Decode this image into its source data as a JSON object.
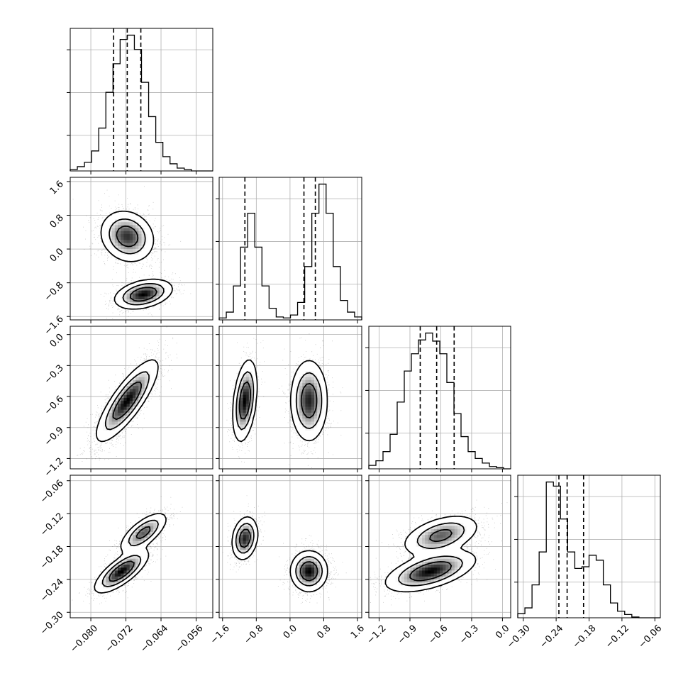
{
  "chart_data": {
    "type": "corner",
    "title": "",
    "params": [
      {
        "xticks": [
          "−0.080",
          "−0.072",
          "−0.064",
          "−0.056"
        ],
        "xtick_values": [
          -0.08,
          -0.072,
          -0.064,
          -0.056
        ],
        "xlim": [
          -0.0847,
          -0.0522
        ],
        "quantiles": [
          -0.0748,
          -0.0717,
          -0.0686
        ]
      },
      {
        "xticks": [
          "−1.6",
          "−0.8",
          "0.0",
          "0.8",
          "1.6"
        ],
        "xtick_values": [
          -1.6,
          -0.8,
          0.0,
          0.8,
          1.6
        ],
        "yticks": [
          "1.6",
          "0.8",
          "0.0",
          "−0.8",
          "−1.6"
        ],
        "ytick_values": [
          1.6,
          0.8,
          0.0,
          -0.8,
          -1.6
        ],
        "xlim": [
          -1.68,
          1.7
        ],
        "quantiles": [
          -1.07,
          0.33,
          0.6
        ]
      },
      {
        "xticks": [
          "−1.2",
          "−0.9",
          "−0.6",
          "−0.3",
          "0.0"
        ],
        "xtick_values": [
          -1.2,
          -0.9,
          -0.6,
          -0.3,
          0.0
        ],
        "yticks": [
          "0.0",
          "−0.3",
          "−0.6",
          "−0.9",
          "−1.2"
        ],
        "ytick_values": [
          0.0,
          -0.3,
          -0.6,
          -0.9,
          -1.2
        ],
        "xlim": [
          -1.3,
          0.08
        ],
        "quantiles": [
          -0.8,
          -0.64,
          -0.47
        ]
      },
      {
        "xticks": [
          "−0.30",
          "−0.24",
          "−0.18",
          "−0.12",
          "−0.06"
        ],
        "xtick_values": [
          -0.3,
          -0.24,
          -0.18,
          -0.12,
          -0.06
        ],
        "yticks": [
          "−0.06",
          "−0.12",
          "−0.18",
          "−0.24",
          "−0.30"
        ],
        "ytick_values": [
          -0.06,
          -0.12,
          -0.18,
          -0.24,
          -0.3
        ],
        "xlim": [
          -0.31,
          -0.05
        ],
        "quantiles": [
          -0.235,
          -0.22,
          -0.19
        ]
      }
    ],
    "histograms": [
      {
        "edges_lim": [
          -0.0847,
          -0.0522
        ],
        "counts": [
          1,
          3,
          6,
          14,
          30,
          55,
          75,
          92,
          95,
          85,
          62,
          38,
          20,
          10,
          5,
          2,
          1,
          0,
          0,
          0
        ]
      },
      {
        "edges_lim": [
          -1.68,
          1.7
        ],
        "counts": [
          2,
          8,
          35,
          75,
          110,
          75,
          35,
          12,
          3,
          2,
          5,
          18,
          55,
          110,
          140,
          110,
          55,
          20,
          8,
          3
        ]
      },
      {
        "edges_lim": [
          -1.3,
          0.08
        ],
        "counts": [
          3,
          7,
          15,
          30,
          58,
          85,
          100,
          112,
          118,
          111,
          100,
          75,
          48,
          28,
          15,
          9,
          5,
          2,
          1,
          0
        ]
      },
      {
        "edges_lim": [
          -0.31,
          -0.05
        ],
        "counts": [
          5,
          12,
          40,
          80,
          165,
          160,
          120,
          80,
          60,
          62,
          76,
          70,
          40,
          18,
          8,
          4,
          1,
          0,
          0,
          0
        ]
      }
    ],
    "pairs": [
      {
        "row": 1,
        "col": 0,
        "blobs": [
          {
            "cx": -0.0717,
            "cy": 0.3,
            "sx": 0.0028,
            "sy": 0.28,
            "rho": -0.15,
            "w": 0.6
          },
          {
            "cx": -0.068,
            "cy": -1.07,
            "sx": 0.003,
            "sy": 0.16,
            "rho": 0.35,
            "w": 0.4
          }
        ]
      },
      {
        "row": 2,
        "col": 0,
        "blobs": [
          {
            "cx": -0.0717,
            "cy": -0.64,
            "sx": 0.0032,
            "sy": 0.18,
            "rho": 0.82,
            "w": 1.0
          }
        ]
      },
      {
        "row": 2,
        "col": 1,
        "blobs": [
          {
            "cx": -1.07,
            "cy": -0.64,
            "sx": 0.13,
            "sy": 0.18,
            "rho": 0.35,
            "w": 0.4
          },
          {
            "cx": 0.45,
            "cy": -0.64,
            "sx": 0.2,
            "sy": 0.18,
            "rho": 0.0,
            "w": 0.6
          }
        ]
      },
      {
        "row": 3,
        "col": 0,
        "blobs": [
          {
            "cx": -0.073,
            "cy": -0.225,
            "sx": 0.0028,
            "sy": 0.018,
            "rho": 0.75,
            "w": 0.6
          },
          {
            "cx": -0.068,
            "cy": -0.155,
            "sx": 0.0025,
            "sy": 0.017,
            "rho": 0.7,
            "w": 0.4
          }
        ]
      },
      {
        "row": 3,
        "col": 1,
        "blobs": [
          {
            "cx": -1.07,
            "cy": -0.165,
            "sx": 0.14,
            "sy": 0.018,
            "rho": 0.2,
            "w": 0.4
          },
          {
            "cx": 0.45,
            "cy": -0.225,
            "sx": 0.2,
            "sy": 0.017,
            "rho": 0.0,
            "w": 0.6
          }
        ]
      },
      {
        "row": 3,
        "col": 2,
        "blobs": [
          {
            "cx": -0.7,
            "cy": -0.225,
            "sx": 0.2,
            "sy": 0.017,
            "rho": 0.55,
            "w": 0.6
          },
          {
            "cx": -0.6,
            "cy": -0.16,
            "sx": 0.17,
            "sy": 0.017,
            "rho": 0.45,
            "w": 0.4
          }
        ]
      }
    ],
    "grid": true,
    "colors": {
      "line": "#000000",
      "grid": "#b0b0b0",
      "points": "#000000"
    }
  }
}
